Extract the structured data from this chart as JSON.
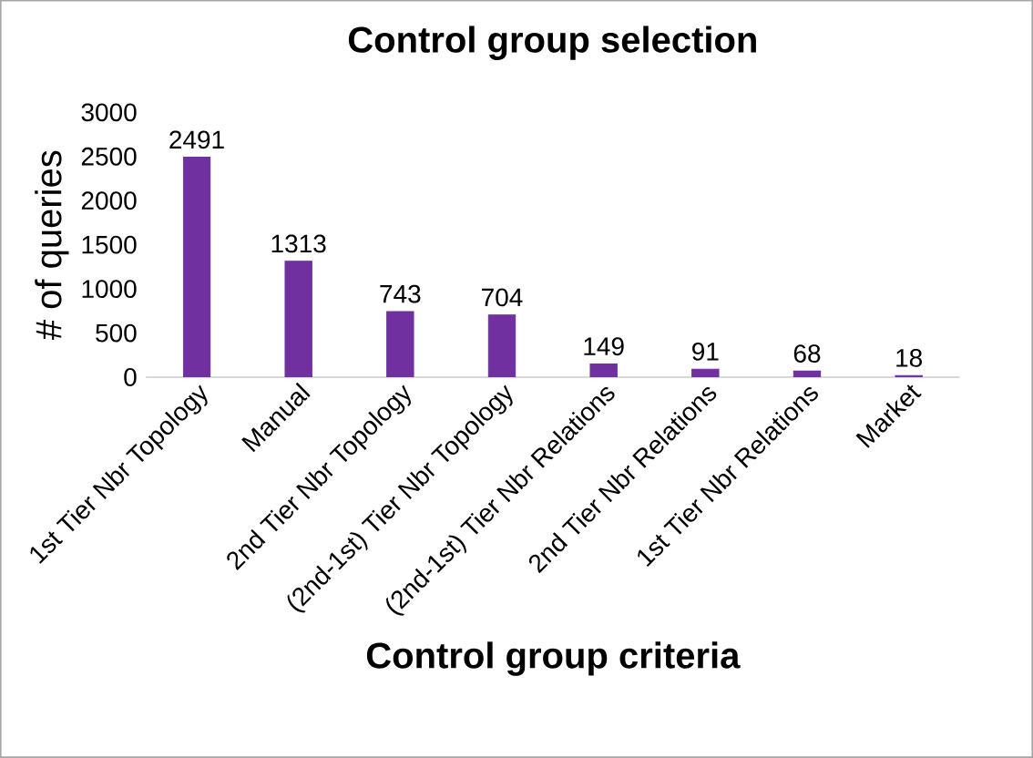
{
  "chart_data": {
    "type": "bar",
    "title": "Control group selection",
    "xlabel": "Control group criteria",
    "ylabel": "# of queries",
    "categories": [
      "1st Tier Nbr Topology",
      "Manual",
      "2nd Tier Nbr Topology",
      "(2nd-1st) Tier Nbr Topology",
      "(2nd-1st) Tier Nbr Relations",
      "2nd Tier Nbr Relations",
      "1st Tier Nbr Relations",
      "Market"
    ],
    "values": [
      2491,
      1313,
      743,
      704,
      149,
      91,
      68,
      18
    ],
    "color": "#7030a0",
    "ylim": [
      0,
      3000
    ],
    "yticks": [
      0,
      500,
      1000,
      1500,
      2000,
      2500,
      3000
    ],
    "data_labels": true,
    "grid": false
  }
}
